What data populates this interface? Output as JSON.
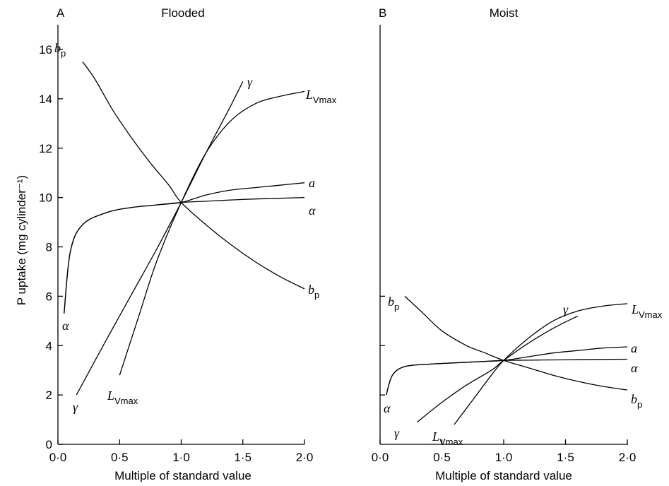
{
  "chart_data": [
    {
      "type": "line",
      "panel_label": "A",
      "title": "Flooded",
      "xlabel": "Multiple of standard value",
      "ylabel": "P uptake (mg cylinder⁻¹)",
      "xlim": [
        0,
        2
      ],
      "ylim": [
        0,
        17
      ],
      "x_ticks": [
        "0·0",
        "0·5",
        "1·0",
        "1·5",
        "2·0"
      ],
      "y_ticks": [
        "0",
        "2",
        "4",
        "6",
        "8",
        "10",
        "12",
        "14",
        "16"
      ],
      "series": [
        {
          "name": "bp",
          "label_main": "b",
          "label_sub": "p",
          "x": [
            0.2,
            0.3,
            0.45,
            0.6,
            0.75,
            0.9,
            1.0,
            1.2,
            1.4,
            1.6,
            1.8,
            2.0
          ],
          "y": [
            15.5,
            14.8,
            13.5,
            12.4,
            11.4,
            10.5,
            9.8,
            8.9,
            8.1,
            7.4,
            6.8,
            6.3
          ]
        },
        {
          "name": "a",
          "label_main": "a",
          "label_sub": "",
          "x": [
            0.05,
            0.1,
            0.2,
            0.4,
            0.6,
            0.8,
            1.0,
            1.2,
            1.4,
            1.6,
            1.8,
            2.0
          ],
          "y": [
            5.3,
            7.8,
            8.9,
            9.4,
            9.6,
            9.7,
            9.8,
            10.1,
            10.3,
            10.4,
            10.5,
            10.6
          ]
        },
        {
          "name": "alpha",
          "label_main": "α",
          "label_sub": "",
          "x": [
            0.05,
            0.1,
            0.2,
            0.4,
            0.6,
            0.8,
            1.0,
            1.2,
            1.4,
            1.6,
            1.8,
            2.0
          ],
          "y": [
            5.3,
            7.8,
            8.9,
            9.4,
            9.6,
            9.7,
            9.8,
            9.85,
            9.9,
            9.94,
            9.97,
            10.0
          ]
        },
        {
          "name": "gamma",
          "label_main": "γ",
          "label_sub": "",
          "x": [
            0.15,
            0.4,
            0.6,
            0.8,
            1.0,
            1.2,
            1.4,
            1.5
          ],
          "y": [
            2.0,
            4.3,
            6.1,
            7.9,
            9.8,
            11.8,
            13.7,
            14.7
          ]
        },
        {
          "name": "LVmax",
          "label_main": "L",
          "label_sub": "Vmax",
          "x": [
            0.5,
            0.65,
            0.8,
            1.0,
            1.2,
            1.4,
            1.6,
            1.8,
            2.0
          ],
          "y": [
            2.8,
            5.1,
            7.4,
            9.8,
            11.8,
            13.1,
            13.8,
            14.1,
            14.3
          ]
        }
      ]
    },
    {
      "type": "line",
      "panel_label": "B",
      "title": "Moist",
      "xlabel": "Multiple of standard value",
      "ylabel": "",
      "xlim": [
        0,
        2
      ],
      "ylim": [
        0,
        17
      ],
      "x_ticks": [
        "0·0",
        "0·5",
        "1·0",
        "1·5",
        "2·0"
      ],
      "y_ticks": [],
      "series": [
        {
          "name": "bp",
          "label_main": "b",
          "label_sub": "p",
          "x": [
            0.2,
            0.35,
            0.5,
            0.7,
            0.85,
            1.0,
            1.2,
            1.4,
            1.6,
            1.8,
            2.0
          ],
          "y": [
            6.0,
            5.3,
            4.6,
            4.0,
            3.7,
            3.4,
            3.1,
            2.8,
            2.55,
            2.35,
            2.2
          ]
        },
        {
          "name": "a",
          "label_main": "a",
          "label_sub": "",
          "x": [
            0.05,
            0.1,
            0.2,
            0.4,
            0.6,
            0.8,
            1.0,
            1.2,
            1.4,
            1.6,
            1.8,
            2.0
          ],
          "y": [
            2.0,
            2.8,
            3.15,
            3.25,
            3.3,
            3.35,
            3.4,
            3.55,
            3.7,
            3.8,
            3.9,
            3.95
          ]
        },
        {
          "name": "alpha",
          "label_main": "α",
          "label_sub": "",
          "x": [
            0.05,
            0.1,
            0.2,
            0.4,
            0.6,
            0.8,
            1.0,
            1.2,
            1.4,
            1.6,
            1.8,
            2.0
          ],
          "y": [
            2.0,
            2.8,
            3.15,
            3.25,
            3.3,
            3.35,
            3.4,
            3.41,
            3.42,
            3.43,
            3.44,
            3.45
          ]
        },
        {
          "name": "gamma",
          "label_main": "γ",
          "label_sub": "",
          "x": [
            0.3,
            0.5,
            0.7,
            0.9,
            1.0,
            1.2,
            1.4,
            1.6
          ],
          "y": [
            0.9,
            1.7,
            2.4,
            3.0,
            3.4,
            4.1,
            4.7,
            5.2
          ]
        },
        {
          "name": "LVmax",
          "label_main": "L",
          "label_sub": "Vmax",
          "x": [
            0.6,
            0.75,
            0.9,
            1.0,
            1.2,
            1.4,
            1.6,
            1.8,
            2.0
          ],
          "y": [
            0.8,
            1.8,
            2.8,
            3.4,
            4.3,
            5.0,
            5.4,
            5.6,
            5.7
          ]
        }
      ]
    }
  ]
}
